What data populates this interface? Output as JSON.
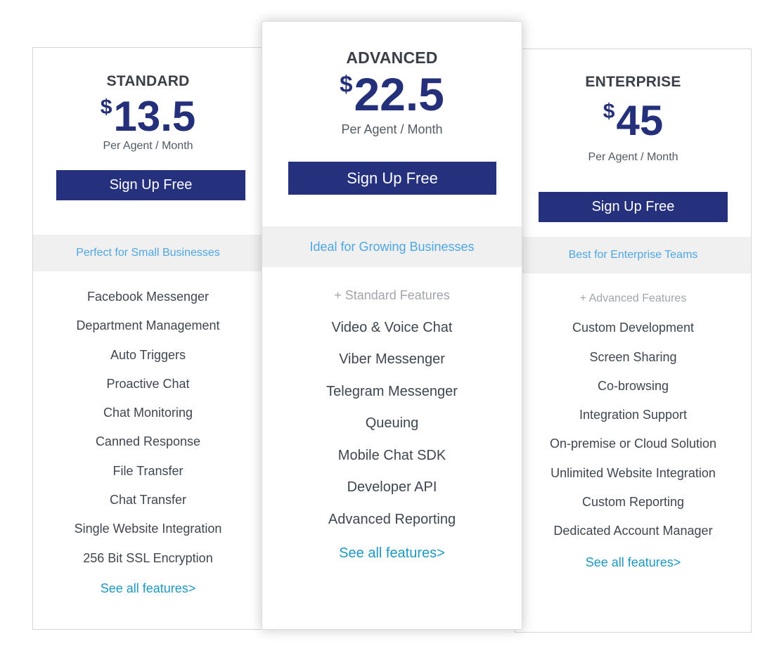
{
  "colors": {
    "button_bg": "#25317c",
    "price_text": "#24307a",
    "band_bg": "#f0f0f0",
    "band_text": "#4ea6e3",
    "link_text": "#1e98c4",
    "muted_text": "#a1a6ab"
  },
  "plans": [
    {
      "id": "standard",
      "name": "STANDARD",
      "currency": "$",
      "price": "13.5",
      "period": "Per Agent / Month",
      "button_label": "Sign Up Free",
      "tagline": "Perfect for Small Businesses",
      "features": [
        "Facebook Messenger",
        "Department Management",
        "Auto Triggers",
        "Proactive Chat",
        "Chat Monitoring",
        "Canned Response",
        "File Transfer",
        "Chat Transfer",
        "Single Website Integration",
        "256 Bit SSL Encryption"
      ],
      "link_label": "See all features>"
    },
    {
      "id": "advanced",
      "name": "ADVANCED",
      "currency": "$",
      "price": "22.5",
      "period": "Per Agent / Month",
      "button_label": "Sign Up Free",
      "tagline": "Ideal for Growing Businesses",
      "features": [
        "+ Standard Features",
        "Video & Voice Chat",
        "Viber Messenger",
        "Telegram Messenger",
        "Queuing",
        "Mobile Chat SDK",
        "Developer API",
        "Advanced Reporting"
      ],
      "link_label": "See all features>"
    },
    {
      "id": "enterprise",
      "name": "ENTERPRISE",
      "currency": "$",
      "price": "45",
      "period": "Per Agent / Month",
      "button_label": "Sign Up Free",
      "tagline": "Best for Enterprise Teams",
      "features": [
        "+ Advanced Features",
        "Custom Development",
        "Screen Sharing",
        "Co-browsing",
        "Integration Support",
        "On-premise or Cloud Solution",
        "Unlimited Website Integration",
        "Custom Reporting",
        "Dedicated Account Manager"
      ],
      "link_label": "See all features>"
    }
  ]
}
